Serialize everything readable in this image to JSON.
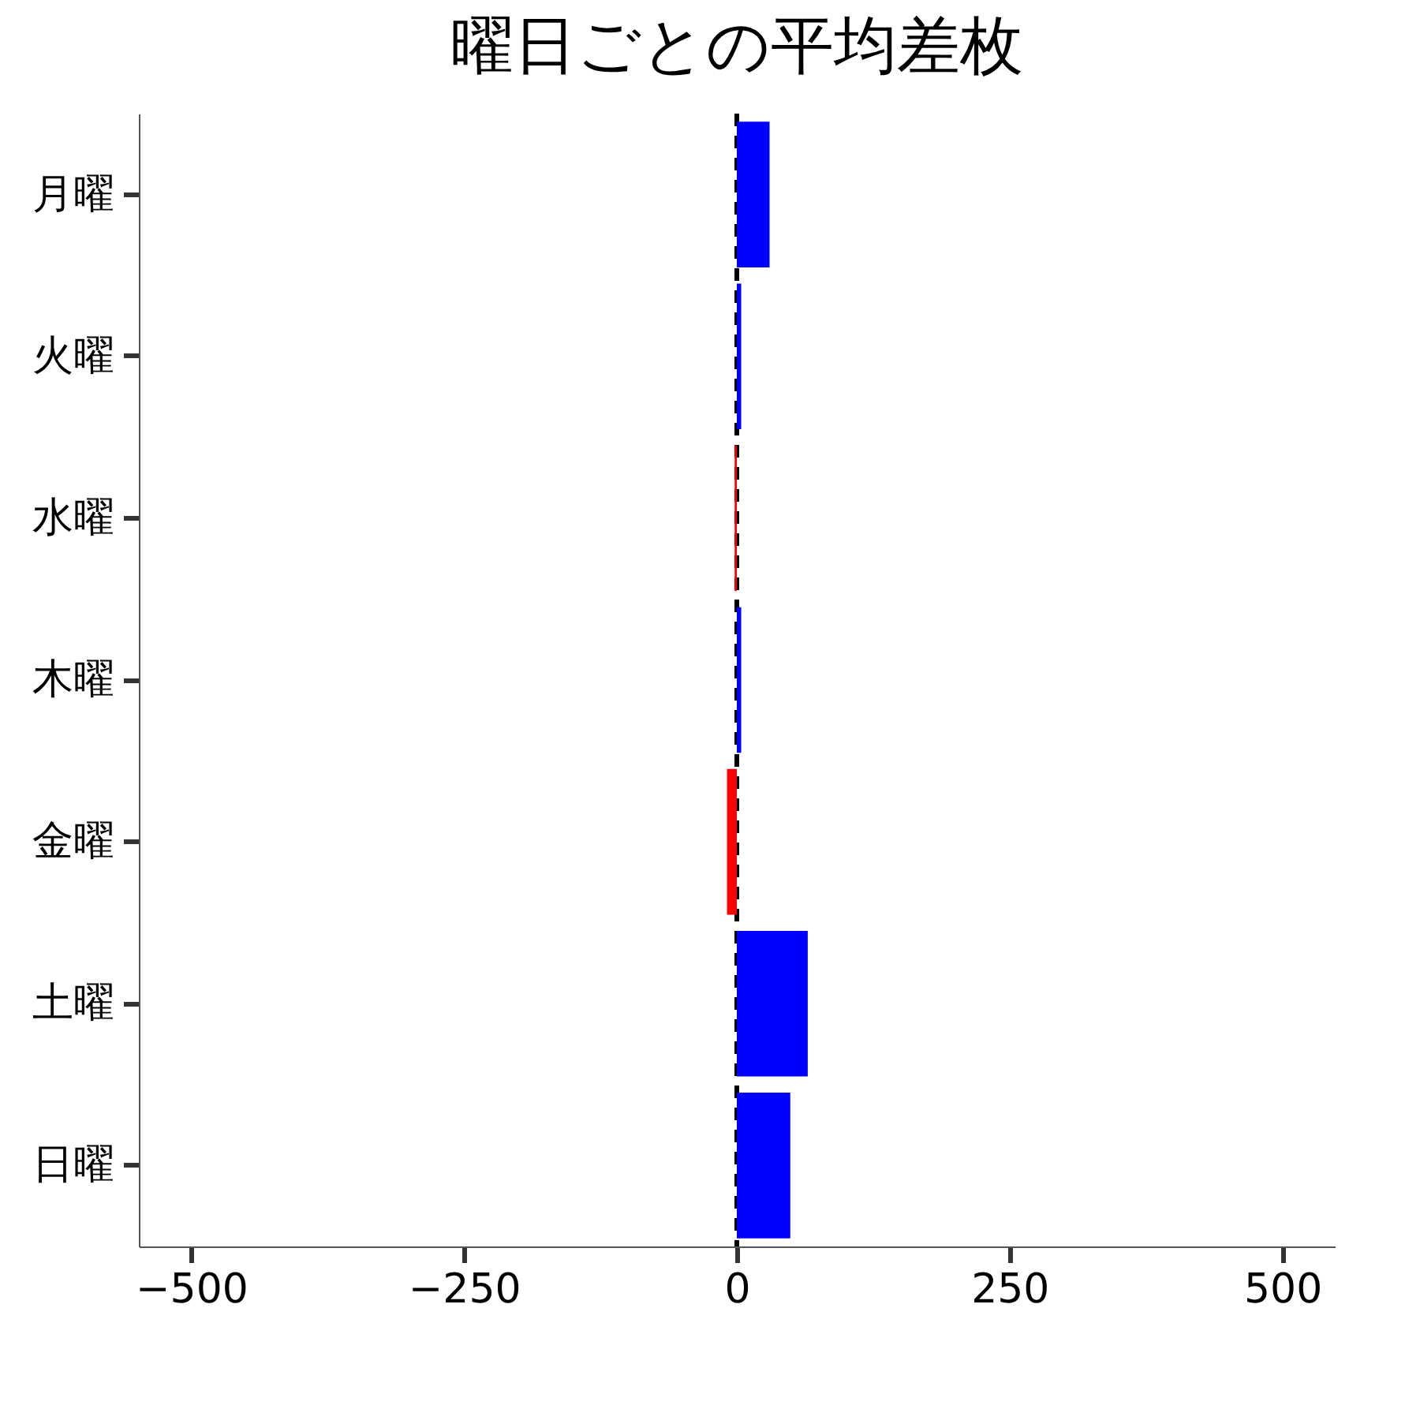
{
  "chart_data": {
    "type": "bar",
    "orientation": "horizontal",
    "title": "曜日ごとの平均差枚",
    "categories": [
      "月曜",
      "火曜",
      "水曜",
      "木曜",
      "金曜",
      "土曜",
      "日曜"
    ],
    "values": [
      30,
      4,
      -2,
      4,
      -9,
      65,
      49
    ],
    "colors": [
      "#0000ff",
      "#0000ff",
      "#ff0000",
      "#0000ff",
      "#ff0000",
      "#0000ff",
      "#0000ff"
    ],
    "xlim": [
      -548,
      548
    ],
    "xticks": [
      -500,
      -250,
      0,
      250,
      500
    ],
    "grid": false,
    "ref_lines": [
      {
        "axis": "x",
        "value": 0,
        "color": "#000000",
        "line_style": "dashed"
      }
    ]
  }
}
